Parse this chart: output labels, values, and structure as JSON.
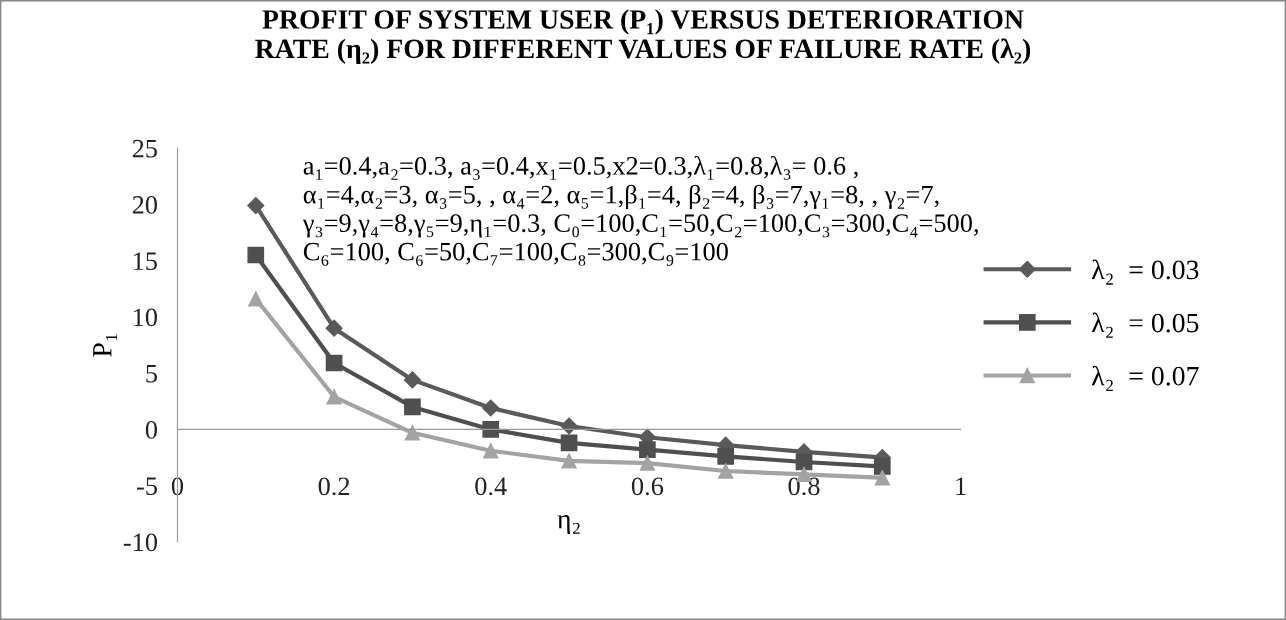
{
  "chart_data": {
    "type": "line",
    "title": "PROFIT OF SYSTEM USER (P₁) VERSUS DETERIORATION\nRATE (η₂) FOR DIFFERENT VALUES OF FAILURE RATE (λ₂)",
    "xlabel": "η₂",
    "ylabel": "P₁",
    "x": [
      0.1,
      0.2,
      0.3,
      0.4,
      0.5,
      0.6,
      0.7,
      0.8,
      0.9
    ],
    "series": [
      {
        "name": "λ₂  = 0.03",
        "color": "#5a5a5a",
        "marker": "diamond",
        "values": [
          19.9,
          9.0,
          4.4,
          1.9,
          0.3,
          -0.7,
          -1.4,
          -2.0,
          -2.5
        ]
      },
      {
        "name": "λ₂  = 0.05",
        "color": "#4f4f4f",
        "marker": "square",
        "values": [
          15.5,
          5.9,
          2.0,
          0.0,
          -1.2,
          -1.8,
          -2.4,
          -2.9,
          -3.3
        ]
      },
      {
        "name": "λ₂  = 0.07",
        "color": "#a3a3a3",
        "marker": "triangle",
        "values": [
          11.6,
          2.9,
          -0.3,
          -1.9,
          -2.8,
          -3.0,
          -3.7,
          -4.0,
          -4.3
        ]
      }
    ],
    "annotations": [
      "a₁=0.4,a₂=0.3, a₃=0.4,x₁=0.5,x2=0.3,λ₁=0.8,λ₃= 0.6 ,\nα₁=4,α₂=3, α₃=5, , α₄=2, α₅=1,β₁=4, β₂=4, β₃=7,γ₁=8, , γ₂=7,\nγ₃=9,γ₄=8,γ₅=9,η₁=0.3, C₀=100,C₁=50,C₂=100,C₃=300,C₄=500,\nC₆=100, C₆=50,C₇=100,C₈=300,C₉=100"
    ],
    "xlim": [
      0,
      1
    ],
    "xticks": [
      0,
      0.2,
      0.4,
      0.6,
      0.8,
      1
    ],
    "ylim": [
      -10,
      25
    ],
    "yticks": [
      -10,
      -5,
      0,
      5,
      10,
      15,
      20,
      25
    ],
    "grid": false,
    "legend": "right",
    "line_style": "solid"
  }
}
